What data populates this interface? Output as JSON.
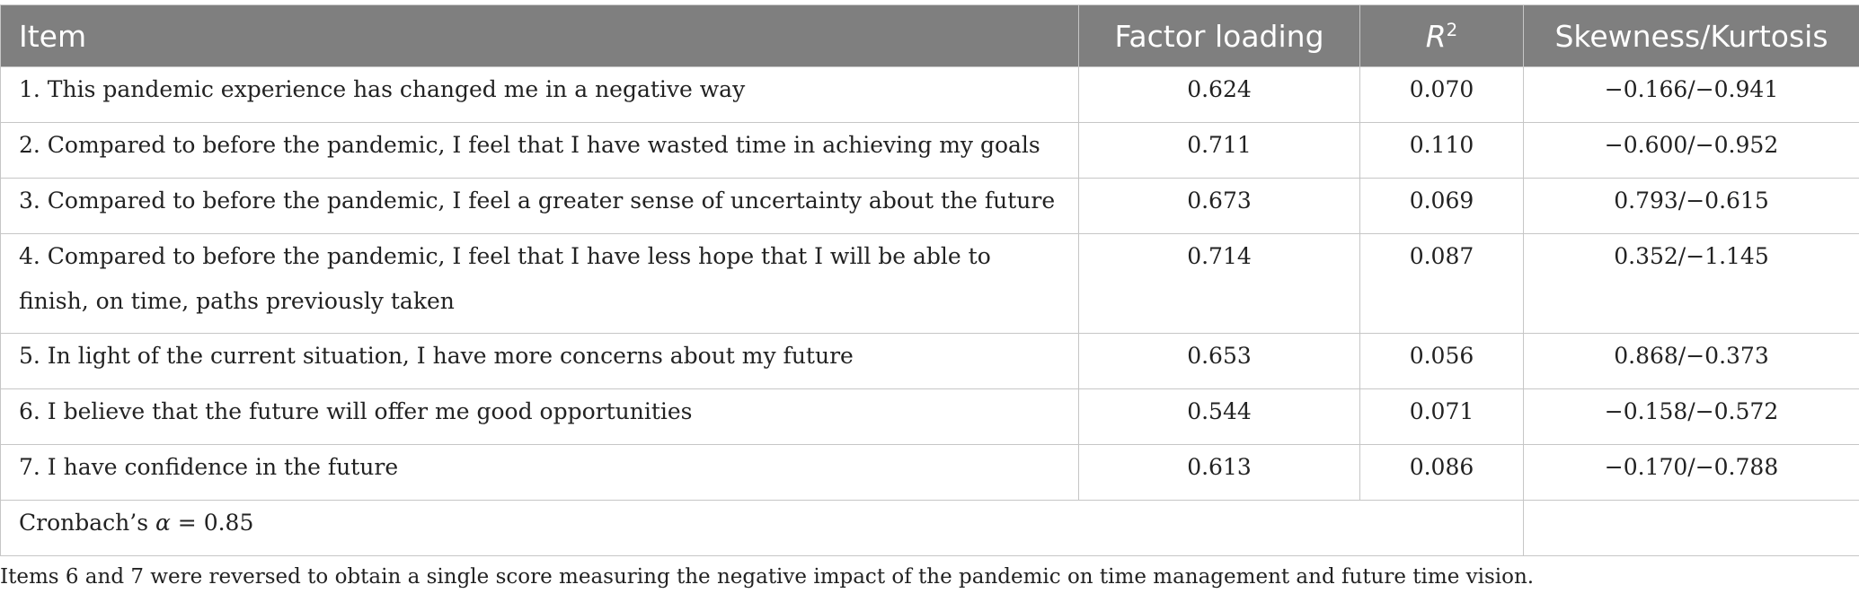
{
  "table": {
    "headers": {
      "item": "Item",
      "factor_loading": "Factor loading",
      "r2_base": "R",
      "r2_sup": "2",
      "skew_kurt": "Skewness/Kurtosis"
    },
    "rows": [
      {
        "item": "1. This pandemic experience has changed me in a negative way",
        "factor_loading": "0.624",
        "r2": "0.070",
        "skew_kurt": "−0.166/−0.941"
      },
      {
        "item": "2. Compared to before the pandemic, I feel that I have wasted time in achieving my goals",
        "factor_loading": "0.711",
        "r2": "0.110",
        "skew_kurt": "−0.600/−0.952"
      },
      {
        "item": "3. Compared to before the pandemic, I feel a greater sense of uncertainty about the future",
        "factor_loading": "0.673",
        "r2": "0.069",
        "skew_kurt": "0.793/−0.615"
      },
      {
        "item": "4. Compared to before the pandemic, I feel that I have less hope that I will be able to finish, on time, paths previously taken",
        "factor_loading": "0.714",
        "r2": "0.087",
        "skew_kurt": "0.352/−1.145"
      },
      {
        "item": "5. In light of the current situation, I have more concerns about my future",
        "factor_loading": "0.653",
        "r2": "0.056",
        "skew_kurt": "0.868/−0.373"
      },
      {
        "item": "6. I believe that the future will offer me good opportunities",
        "factor_loading": "0.544",
        "r2": "0.071",
        "skew_kurt": "−0.158/−0.572"
      },
      {
        "item": "7. I have confidence in the future",
        "factor_loading": "0.613",
        "r2": "0.086",
        "skew_kurt": "−0.170/−0.788"
      }
    ],
    "summary": {
      "label_prefix": "Cronbach’s ",
      "alpha_symbol": "α",
      "label_suffix": " = 0.85"
    }
  },
  "footnote": "Items 6 and 7 were reversed to obtain a single score measuring the negative impact of the pandemic on time management and future time vision."
}
